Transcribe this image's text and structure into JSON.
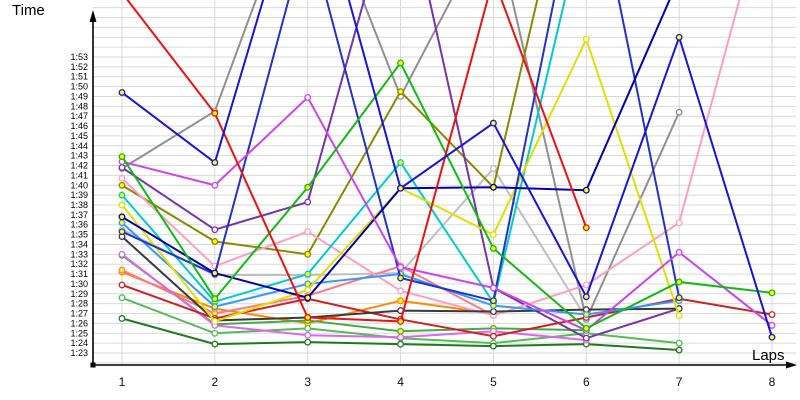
{
  "chart_data": {
    "type": "line",
    "title": "",
    "ylabel": "Time",
    "xlabel": "Laps",
    "grid": true,
    "legend": "none",
    "x_ticks": [
      "1",
      "2",
      "3",
      "4",
      "5",
      "6",
      "7",
      "8"
    ],
    "y_ticks": [
      "1:53",
      "1:52",
      "1:51",
      "1:50",
      "1:49",
      "1:48",
      "1:47",
      "1:46",
      "1:45",
      "1:44",
      "1:43",
      "1:42",
      "1:41",
      "1:40",
      "1:39",
      "1:38",
      "1:37",
      "1:36",
      "1:35",
      "1:34",
      "1:33",
      "1:32",
      "1:31",
      "1:30",
      "1:29",
      "1:28",
      "1:27",
      "1:26",
      "1:25",
      "1:24",
      "1:23"
    ],
    "y_axis_top_seconds": 113,
    "y_axis_bottom_seconds": 83,
    "note": "lap time values in seconds (83 = 1:23, 113 = 1:53); values above 113.5 run off the top of the chart; null = no lap recorded",
    "series": [
      {
        "name": "light-gray",
        "color": "#bfbfbf",
        "marker_fill": "#ffffff",
        "sec": [
          95.5,
          90.9,
          90.9,
          91.1,
          101.7,
          86.5,
          null,
          null
        ]
      },
      {
        "name": "gray",
        "color": "#909090",
        "marker_fill": "#ffffff",
        "sec": [
          101.7,
          107.5,
          133,
          109,
          127,
          86.4,
          107.4,
          null
        ]
      },
      {
        "name": "orange",
        "color": "#ff8800",
        "marker_fill": "#ffff00",
        "sec": [
          91.2,
          87.5,
          86.0,
          88.3,
          87.0,
          null,
          null,
          null
        ]
      },
      {
        "name": "rose",
        "color": "#ff7788",
        "marker_fill": "#ffff00",
        "sec": [
          91.4,
          87.0,
          88.8,
          91.8,
          86.8,
          null,
          null,
          null
        ]
      },
      {
        "name": "spring-green",
        "color": "#55bb55",
        "marker_fill": "#ffffff",
        "sec": [
          88.6,
          85.0,
          85.5,
          84.5,
          84.0,
          85.0,
          84.0,
          null
        ]
      },
      {
        "name": "forest-green",
        "color": "#1e7a1e",
        "marker_fill": "#ffffff",
        "sec": [
          86.5,
          83.9,
          84.1,
          83.9,
          83.7,
          83.9,
          83.3,
          null
        ]
      },
      {
        "name": "medium-green",
        "color": "#44aa44",
        "marker_fill": "#ffff00",
        "sec": [
          92.9,
          85.9,
          86.3,
          85.2,
          85.5,
          85.3,
          null,
          null
        ]
      },
      {
        "name": "orchid",
        "color": "#dd66ee",
        "marker_fill": "#ffffff",
        "sec": [
          93.0,
          85.8,
          84.8,
          84.6,
          85.2,
          84.3,
          null,
          null
        ]
      },
      {
        "name": "olive",
        "color": "#8a8a00",
        "marker_fill": "#ffff00",
        "sec": [
          100.0,
          94.3,
          93.0,
          109.5,
          99.8,
          140,
          null,
          null
        ]
      },
      {
        "name": "purple",
        "color": "#7733aa",
        "marker_fill": "#ffffff",
        "sec": [
          101.8,
          95.5,
          98.3,
          132,
          89.6,
          84.5,
          87.5,
          null
        ]
      },
      {
        "name": "pink",
        "color": "#ff9ec0",
        "marker_fill": "#ffffff",
        "sec": [
          100.7,
          91.8,
          95.3,
          89.3,
          86.8,
          89.9,
          96.2,
          131
        ]
      },
      {
        "name": "dark-red",
        "color": "#cc2222",
        "marker_fill": "#ffffff",
        "sec": [
          89.9,
          86.5,
          88.5,
          86.4,
          84.7,
          86.6,
          88.5,
          86.9
        ]
      },
      {
        "name": "black",
        "color": "#3a3a3a",
        "marker_fill": "#ffffff",
        "sec": [
          94.8,
          86.3,
          86.6,
          87.3,
          87.2,
          87.4,
          87.5,
          null
        ]
      },
      {
        "name": "cyan",
        "color": "#00cccc",
        "marker_fill": "#ffff00",
        "sec": [
          99.0,
          88.2,
          91.0,
          102.3,
          88.1,
          128,
          null,
          null
        ]
      },
      {
        "name": "dodger-blue",
        "color": "#3399ff",
        "marker_fill": "#ffff00",
        "sec": [
          96.2,
          87.7,
          90.0,
          91.0,
          87.8,
          86.9,
          88.3,
          null
        ]
      },
      {
        "name": "yellow",
        "color": "#e0e000",
        "marker_fill": "#ffffff",
        "sec": [
          98.0,
          86.2,
          89.4,
          99.7,
          95.0,
          114.8,
          86.8,
          null
        ]
      },
      {
        "name": "blue2",
        "color": "#2233cc",
        "marker_fill": "#ffff00",
        "sec": [
          95.3,
          91.0,
          126,
          90.6,
          88.3,
          135,
          88.6,
          null
        ]
      },
      {
        "name": "navy",
        "color": "#0000b0",
        "marker_fill": "#ffff00",
        "sec": [
          96.8,
          91.1,
          88.6,
          99.7,
          99.8,
          99.5,
          121,
          null
        ]
      },
      {
        "name": "magenta",
        "color": "#cc44ee",
        "marker_fill": "#ffffff",
        "sec": [
          102.4,
          100.0,
          108.9,
          91.7,
          89.6,
          85.3,
          93.2,
          85.8
        ]
      },
      {
        "name": "green",
        "color": "#11bb11",
        "marker_fill": "#ffff00",
        "sec": [
          102.9,
          88.5,
          99.8,
          112.4,
          93.6,
          85.5,
          90.2,
          89.1
        ]
      },
      {
        "name": "red",
        "color": "#ee1111",
        "marker_fill": "#ffff00",
        "sec": [
          119.5,
          107.3,
          86.6,
          86.2,
          121,
          95.7,
          null,
          null
        ]
      },
      {
        "name": "royal-blue",
        "color": "#1515dd",
        "marker_fill": "#ffff00",
        "sec": [
          109.4,
          102.3,
          134,
          99.7,
          106.3,
          88.7,
          115.0,
          84.6
        ]
      }
    ]
  },
  "layout_colors": {
    "background": "#ffffff",
    "gridline": "#d9d9d9",
    "axis": "#000000"
  }
}
